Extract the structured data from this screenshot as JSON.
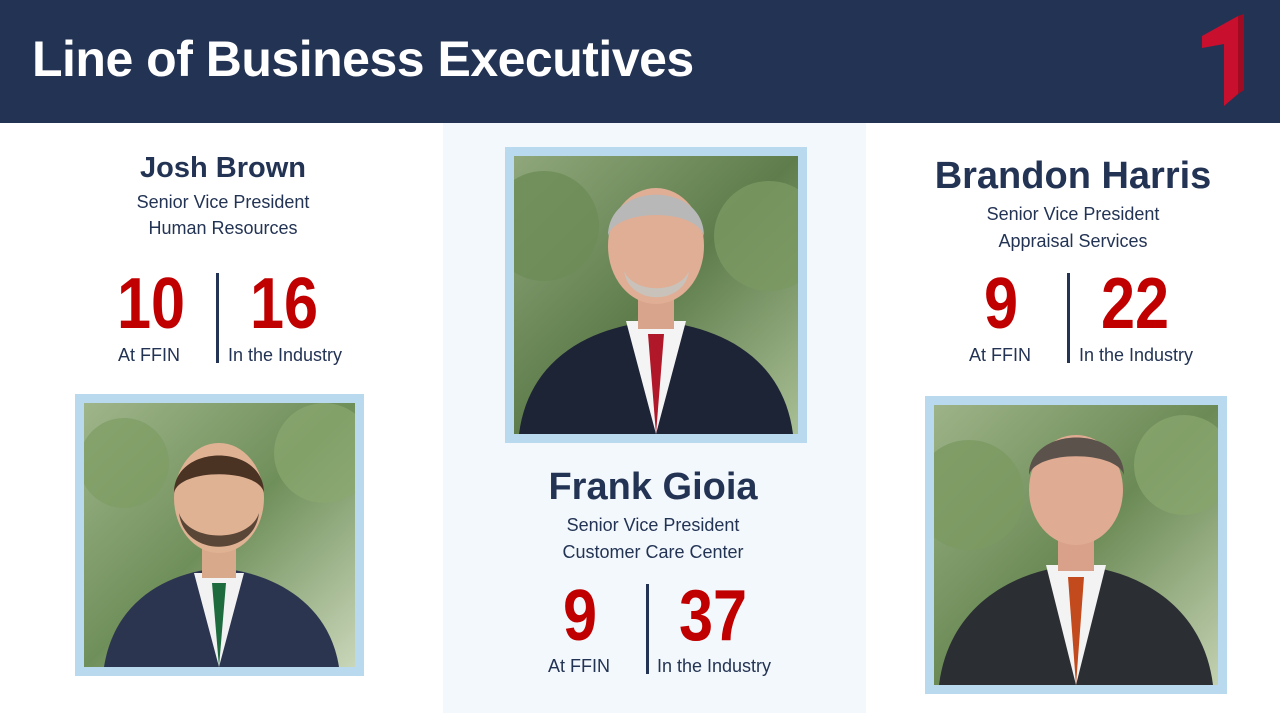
{
  "header": {
    "title": "Line of Business Executives"
  },
  "colors": {
    "header_bg": "#233354",
    "accent_red": "#c00000",
    "name_navy": "#233354",
    "frame_blue": "#b9d9ef",
    "center_panel_bg": "#f3f8fc"
  },
  "executives": [
    {
      "name": "Josh Brown",
      "title": "Senior Vice President",
      "department": "Human Resources",
      "years_ffin": "10",
      "years_ffin_label": "At FFIN",
      "years_industry": "16",
      "years_industry_label": "In the Industry",
      "photo": "headshot-josh-brown"
    },
    {
      "name": "Frank Gioia",
      "title": "Senior Vice President",
      "department": "Customer Care Center",
      "years_ffin": "9",
      "years_ffin_label": "At FFIN",
      "years_industry": "37",
      "years_industry_label": "In the Industry",
      "photo": "headshot-frank-gioia"
    },
    {
      "name": "Brandon Harris",
      "title": "Senior Vice President",
      "department": "Appraisal Services",
      "years_ffin": "9",
      "years_ffin_label": "At FFIN",
      "years_industry": "22",
      "years_industry_label": "In the Industry",
      "photo": "headshot-brandon-harris"
    }
  ]
}
